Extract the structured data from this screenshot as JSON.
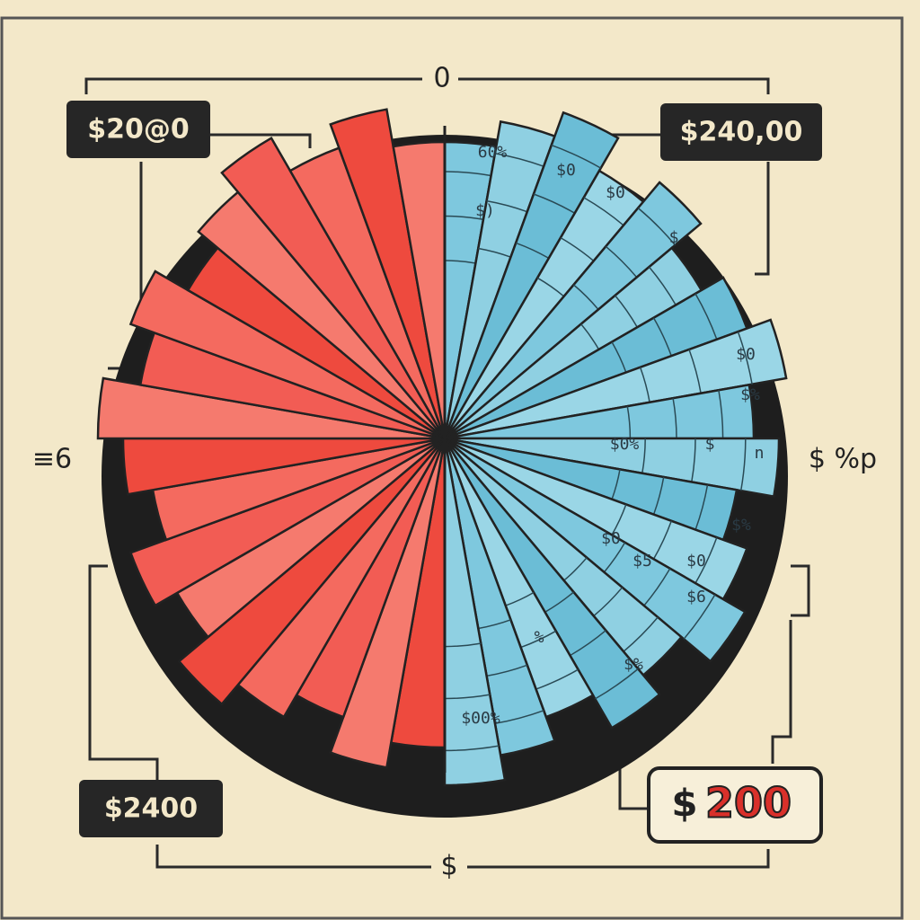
{
  "top_mark": "0",
  "left_mark": "≡6",
  "right_mark": "$ %p",
  "bottom_mark": "$",
  "callouts": [
    "$20@0",
    "$240,00",
    "$2400"
  ],
  "featured": {
    "symbol": "$",
    "amount": "200"
  },
  "wedge_labels": [
    "60%",
    "$)",
    "$0",
    "$0",
    "$",
    "$0",
    "$%",
    "$0%",
    "$",
    "n",
    "$%",
    "$0",
    "$6",
    "$0",
    "$5",
    "$00%",
    "%",
    "$%"
  ]
}
